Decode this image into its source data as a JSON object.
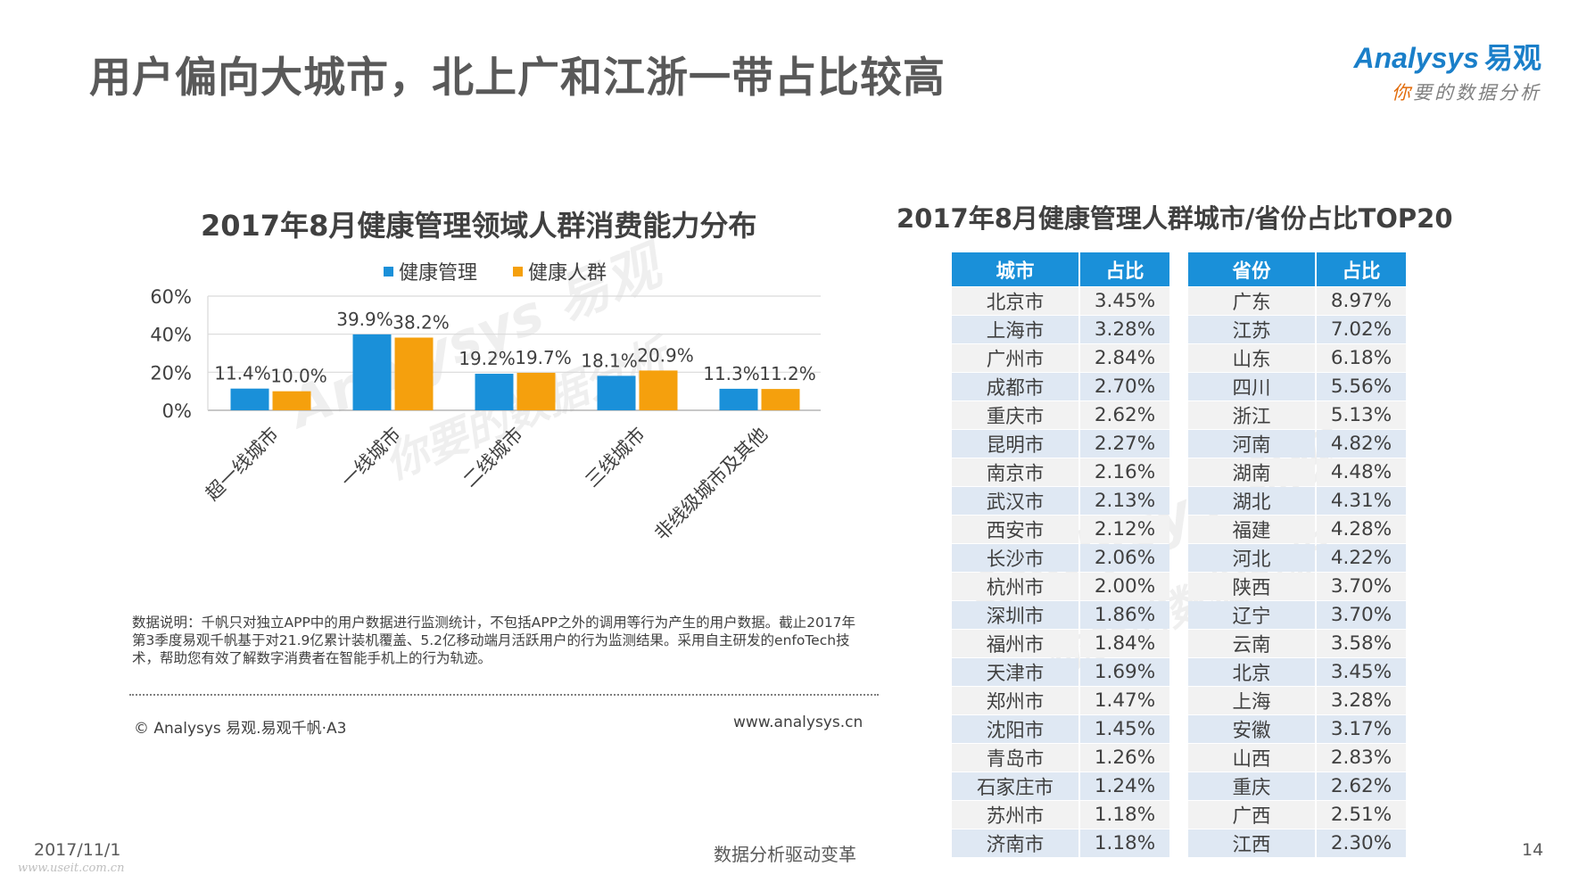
{
  "page": {
    "title": "用户偏向大城市，北上广和江浙一带占比较高",
    "logo_brand": "Analysys",
    "logo_brand_cn": "易观",
    "logo_slogan_first": "你",
    "logo_slogan_rest": "要的数据分析"
  },
  "chart_data": {
    "type": "bar",
    "title": "2017年8月健康管理领域人群消费能力分布",
    "categories": [
      "超一线城市",
      "一线城市",
      "二线城市",
      "三线城市",
      "非线级城市及其他"
    ],
    "series": [
      {
        "name": "健康管理",
        "values": [
          11.4,
          39.9,
          19.2,
          18.1,
          11.3
        ],
        "labels": [
          "11.4%",
          "39.9%",
          "19.2%",
          "18.1%",
          "11.3%"
        ],
        "color": "#1a90d9"
      },
      {
        "name": "健康人群",
        "values": [
          10.0,
          38.2,
          19.7,
          20.9,
          11.2
        ],
        "labels": [
          "10.0%",
          "38.2%",
          "19.7%",
          "20.9%",
          "11.2%"
        ],
        "color": "#f5a00d"
      }
    ],
    "ylim": [
      0,
      60
    ],
    "yticks": [
      "0%",
      "20%",
      "40%",
      "60%"
    ],
    "grid": true,
    "legend": "top"
  },
  "note": "数据说明：千帆只对独立APP中的用户数据进行监测统计，不包括APP之外的调用等行为产生的用户数据。截止2017年第3季度易观千帆基于对21.9亿累计装机覆盖、5.2亿移动端月活跃用户的行为监测结果。采用自主研发的enfoTech技术，帮助您有效了解数字消费者在智能手机上的行为轨迹。",
  "source": {
    "copyright": "© Analysys 易观.易观千帆·A3",
    "website": "www.analysys.cn"
  },
  "ranking": {
    "title": "2017年8月健康管理人群城市/省份占比TOP20",
    "city_headers": [
      "城市",
      "占比"
    ],
    "cities": [
      [
        "北京市",
        "3.45%"
      ],
      [
        "上海市",
        "3.28%"
      ],
      [
        "广州市",
        "2.84%"
      ],
      [
        "成都市",
        "2.70%"
      ],
      [
        "重庆市",
        "2.62%"
      ],
      [
        "昆明市",
        "2.27%"
      ],
      [
        "南京市",
        "2.16%"
      ],
      [
        "武汉市",
        "2.13%"
      ],
      [
        "西安市",
        "2.12%"
      ],
      [
        "长沙市",
        "2.06%"
      ],
      [
        "杭州市",
        "2.00%"
      ],
      [
        "深圳市",
        "1.86%"
      ],
      [
        "福州市",
        "1.84%"
      ],
      [
        "天津市",
        "1.69%"
      ],
      [
        "郑州市",
        "1.47%"
      ],
      [
        "沈阳市",
        "1.45%"
      ],
      [
        "青岛市",
        "1.26%"
      ],
      [
        "石家庄市",
        "1.24%"
      ],
      [
        "苏州市",
        "1.18%"
      ],
      [
        "济南市",
        "1.18%"
      ]
    ],
    "province_headers": [
      "省份",
      "占比"
    ],
    "provinces": [
      [
        "广东",
        "8.97%"
      ],
      [
        "江苏",
        "7.02%"
      ],
      [
        "山东",
        "6.18%"
      ],
      [
        "四川",
        "5.56%"
      ],
      [
        "浙江",
        "5.13%"
      ],
      [
        "河南",
        "4.82%"
      ],
      [
        "湖南",
        "4.48%"
      ],
      [
        "湖北",
        "4.31%"
      ],
      [
        "福建",
        "4.28%"
      ],
      [
        "河北",
        "4.22%"
      ],
      [
        "陕西",
        "3.70%"
      ],
      [
        "辽宁",
        "3.70%"
      ],
      [
        "云南",
        "3.58%"
      ],
      [
        "北京",
        "3.45%"
      ],
      [
        "上海",
        "3.28%"
      ],
      [
        "安徽",
        "3.17%"
      ],
      [
        "山西",
        "2.83%"
      ],
      [
        "重庆",
        "2.62%"
      ],
      [
        "广西",
        "2.51%"
      ],
      [
        "江西",
        "2.30%"
      ]
    ]
  },
  "footer": {
    "date": "2017/11/1",
    "url": "www.useit.com.cn",
    "center": "数据分析驱动变革",
    "page": "14"
  },
  "watermark": {
    "brand": "Analysys 易观",
    "slogan": "你要的数据分析"
  }
}
